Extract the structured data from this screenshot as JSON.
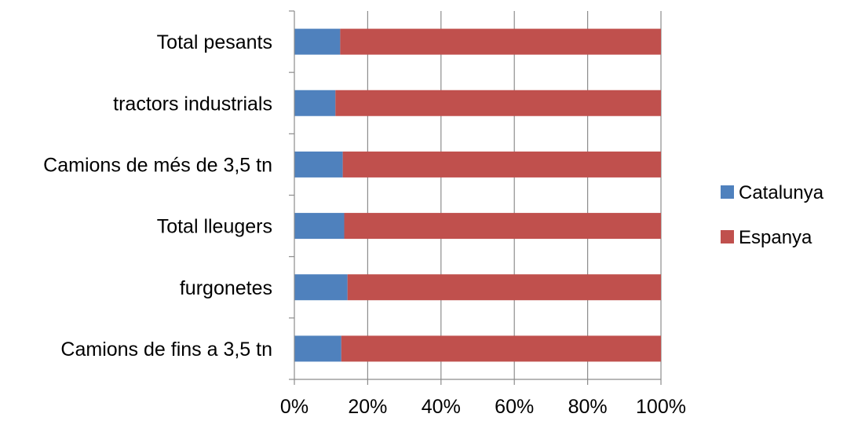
{
  "chart_data": {
    "type": "bar",
    "orientation": "horizontal",
    "stacked": "percent",
    "categories": [
      "Camions de fins a 3,5 tn",
      "furgonetes",
      "Total lleugers",
      "Camions de més de 3,5 tn",
      "tractors industrials",
      "Total pesants"
    ],
    "series": [
      {
        "name": "Catalunya",
        "color": "#4f81bd",
        "values": [
          12.8,
          14.5,
          13.6,
          13.2,
          11.2,
          12.5
        ]
      },
      {
        "name": "Espanya",
        "color": "#c0504d",
        "values": [
          87.2,
          85.5,
          86.4,
          86.8,
          88.8,
          87.5
        ]
      }
    ],
    "x_ticks": [
      "0%",
      "20%",
      "40%",
      "60%",
      "80%",
      "100%"
    ],
    "xlim": [
      0,
      100
    ],
    "grid": "vertical",
    "legend": "right",
    "title": "",
    "xlabel": "",
    "ylabel": ""
  }
}
